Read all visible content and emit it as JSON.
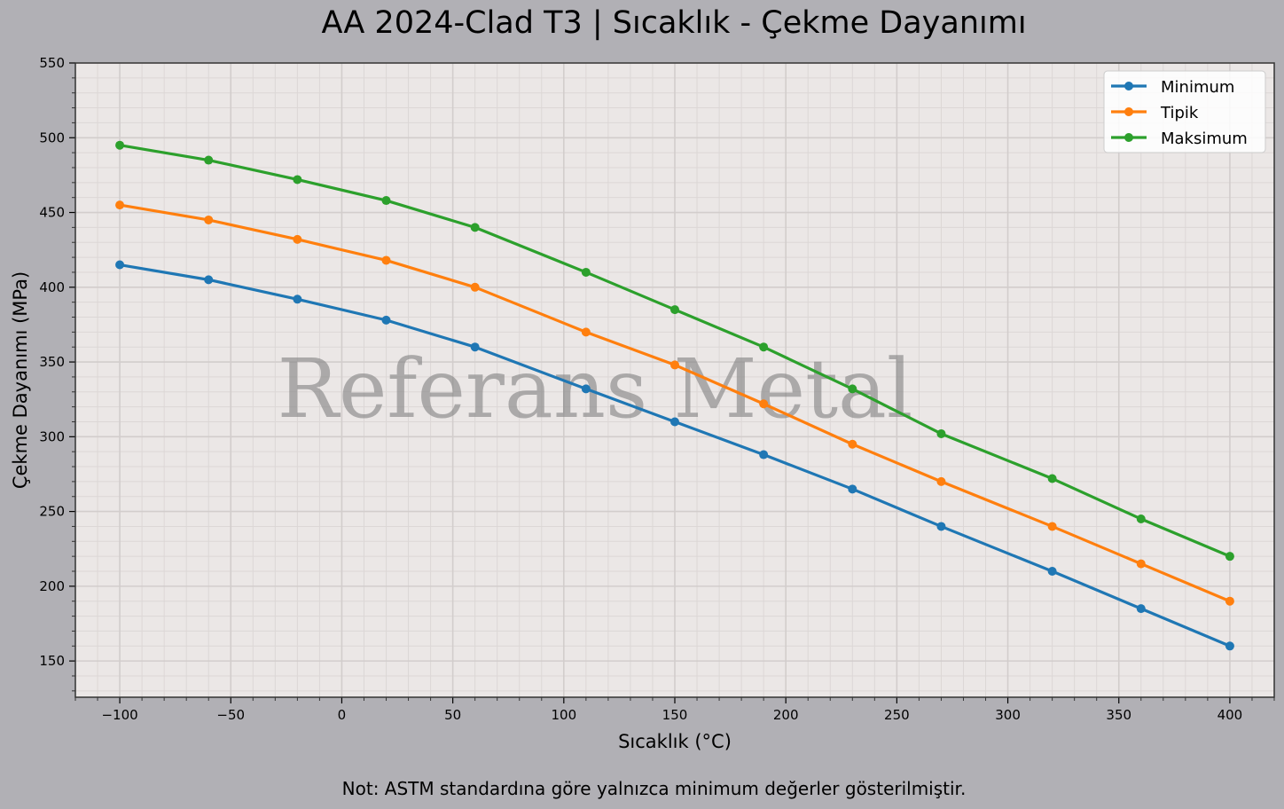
{
  "chart_data": {
    "type": "line",
    "title": "AA 2024-Clad T3 | Sıcaklık - Çekme Dayanımı",
    "xlabel": "Sıcaklık (°C)",
    "ylabel": "Çekme Dayanımı (MPa)",
    "xlim": [
      -120,
      420
    ],
    "ylim": [
      125.75,
      550
    ],
    "xticks": [
      -100,
      -50,
      0,
      50,
      100,
      150,
      200,
      250,
      300,
      350,
      400
    ],
    "xtick_labels": [
      "−100",
      "−50",
      "0",
      "50",
      "100",
      "150",
      "200",
      "250",
      "300",
      "350",
      "400"
    ],
    "yticks": [
      150,
      200,
      250,
      300,
      350,
      400,
      450,
      500,
      550
    ],
    "yticks_labels": [
      "150",
      "200",
      "250",
      "300",
      "350",
      "400",
      "450",
      "500",
      "550"
    ],
    "grid": true,
    "minor_grid": true,
    "legend_position": "top-right",
    "x": [
      -100,
      -60,
      -20,
      20,
      60,
      110,
      150,
      190,
      230,
      270,
      320,
      360,
      400
    ],
    "series": [
      {
        "name": "Minimum",
        "color": "#1f77b4",
        "values": [
          415,
          405,
          392,
          378,
          360,
          332,
          310,
          288,
          265,
          240,
          210,
          185,
          160
        ]
      },
      {
        "name": "Tipik",
        "color": "#ff7f0e",
        "values": [
          455,
          445,
          432,
          418,
          400,
          370,
          348,
          322,
          295,
          270,
          240,
          215,
          190
        ]
      },
      {
        "name": "Maksimum",
        "color": "#2ca02c",
        "values": [
          495,
          485,
          472,
          458,
          440,
          410,
          385,
          360,
          332,
          302,
          272,
          245,
          220
        ]
      }
    ],
    "watermark": "Referans Metal",
    "note": "Not: ASTM standardına göre yalnızca minimum değerler gösterilmiştir."
  }
}
